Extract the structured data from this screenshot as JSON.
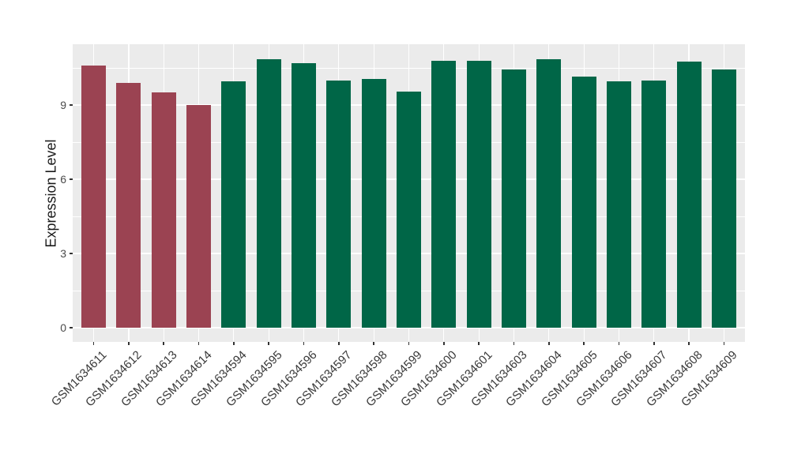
{
  "chart_data": {
    "type": "bar",
    "title": "",
    "xlabel": "",
    "ylabel": "Expression Level",
    "categories": [
      "GSM1634611",
      "GSM1634612",
      "GSM1634613",
      "GSM1634614",
      "GSM1634594",
      "GSM1634595",
      "GSM1634596",
      "GSM1634597",
      "GSM1634598",
      "GSM1634599",
      "GSM1634600",
      "GSM1634601",
      "GSM1634603",
      "GSM1634604",
      "GSM1634605",
      "GSM1634606",
      "GSM1634607",
      "GSM1634608",
      "GSM1634609"
    ],
    "values": [
      10.6,
      9.9,
      9.5,
      9.0,
      9.95,
      10.85,
      10.7,
      10.0,
      10.05,
      9.55,
      10.8,
      10.8,
      10.45,
      10.85,
      10.15,
      9.95,
      10.0,
      10.75,
      10.45
    ],
    "bar_colors": [
      "#9B4352",
      "#9B4352",
      "#9B4352",
      "#9B4352",
      "#006647",
      "#006647",
      "#006647",
      "#006647",
      "#006647",
      "#006647",
      "#006647",
      "#006647",
      "#006647",
      "#006647",
      "#006647",
      "#006647",
      "#006647",
      "#006647",
      "#006647"
    ],
    "color_legend": {
      "red": "#9B4352",
      "green": "#006647"
    },
    "yticks": [
      0,
      3,
      6,
      9
    ],
    "minor_yticks": [
      1.5,
      4.5,
      7.5,
      10.5
    ],
    "ylim": [
      -0.57,
      11.46
    ],
    "grid": true,
    "legend_position": "none",
    "panel_bg": "#EBEBEB",
    "grid_color": "#FFFFFF",
    "tick_color": "#333333"
  }
}
